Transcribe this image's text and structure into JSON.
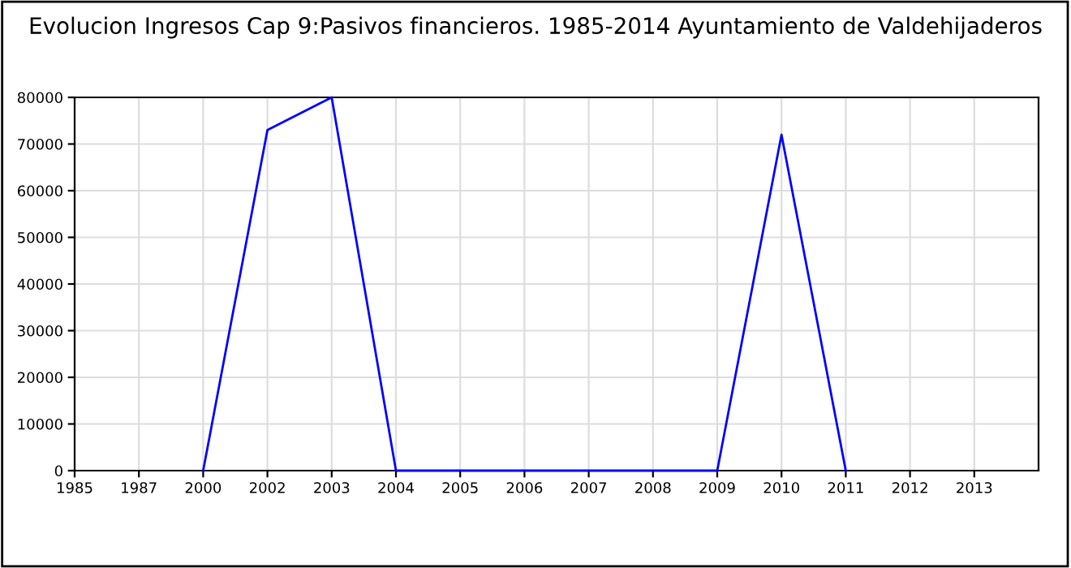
{
  "chart_data": {
    "type": "line",
    "title": "Evolucion Ingresos Cap 9:Pasivos financieros. 1985-2014 Ayuntamiento de Valdehijaderos",
    "categories": [
      "1985",
      "1987",
      "2000",
      "2002",
      "2003",
      "2004",
      "2005",
      "2006",
      "2007",
      "2008",
      "2009",
      "2010",
      "2011",
      "2012",
      "2013"
    ],
    "series": [
      {
        "color": "#0000ff",
        "values": [
          null,
          null,
          0,
          73000,
          80000,
          0,
          0,
          0,
          0,
          0,
          0,
          72000,
          0,
          null,
          null
        ]
      }
    ],
    "ylim": [
      0,
      80000
    ],
    "yticks": [
      0,
      10000,
      20000,
      30000,
      40000,
      50000,
      60000,
      70000,
      80000
    ],
    "grid": true,
    "marker": "none",
    "line_style": "solid"
  }
}
